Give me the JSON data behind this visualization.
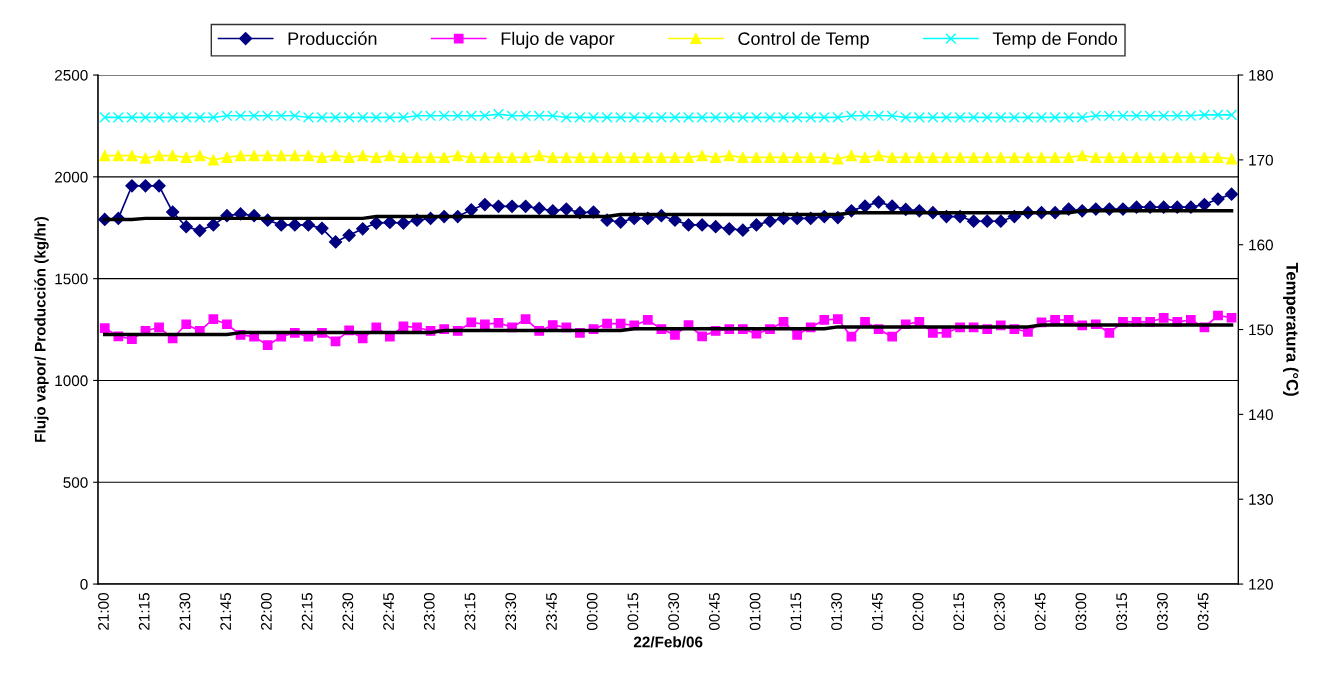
{
  "chart_data": {
    "type": "line",
    "xlabel": "22/Feb/06",
    "ylabel": "Flujo vapor/ Producción (kg/hr)",
    "y2label": "Temperatura (°C)",
    "categories": [
      "21:00",
      null,
      null,
      "21:15",
      null,
      null,
      "21:30",
      null,
      null,
      "21:45",
      null,
      null,
      "22:00",
      null,
      null,
      "22:15",
      null,
      null,
      "22:30",
      null,
      null,
      "22:45",
      null,
      null,
      "23:00",
      null,
      null,
      "23:15",
      null,
      null,
      "23:30",
      null,
      null,
      "23:45",
      null,
      null,
      "00:00",
      null,
      null,
      "00:15",
      null,
      null,
      "00:30",
      null,
      null,
      "00:45",
      null,
      null,
      "01:00",
      null,
      null,
      "01:15",
      null,
      null,
      "01:30",
      null,
      null,
      "01:45",
      null,
      null,
      "02:00",
      null,
      null,
      "02:15",
      null,
      null,
      "02:30",
      null,
      null,
      "02:45",
      null,
      null,
      "03:00",
      null,
      null,
      "03:15",
      null,
      null,
      "03:30",
      null,
      null,
      "03:45",
      null,
      null
    ],
    "ylim": [
      0,
      2500
    ],
    "yticks": [
      0,
      500,
      1000,
      1500,
      2000,
      2500
    ],
    "y2lim": [
      120,
      180
    ],
    "y2ticks": [
      120,
      130,
      140,
      150,
      160,
      170,
      180
    ],
    "grid": "y",
    "legend": "top",
    "line_style": "solid",
    "series": [
      {
        "name": "Producción",
        "color": "#000080",
        "marker": "diamond",
        "values": [
          1791,
          1796,
          1956,
          1956,
          1956,
          1827,
          1755,
          1736,
          1764,
          1809,
          1818,
          1809,
          1787,
          1764,
          1764,
          1764,
          1747,
          1680,
          1713,
          1745,
          1773,
          1776,
          1773,
          1787,
          1796,
          1805,
          1805,
          1838,
          1864,
          1855,
          1855,
          1855,
          1845,
          1833,
          1842,
          1824,
          1827,
          1787,
          1778,
          1796,
          1796,
          1809,
          1787,
          1764,
          1764,
          1755,
          1745,
          1738,
          1764,
          1782,
          1796,
          1796,
          1796,
          1805,
          1800,
          1833,
          1856,
          1876,
          1856,
          1840,
          1833,
          1824,
          1805,
          1805,
          1782,
          1782,
          1782,
          1805,
          1824,
          1824,
          1824,
          1842,
          1833,
          1842,
          1842,
          1842,
          1851,
          1851,
          1851,
          1851,
          1851,
          1864,
          1891,
          1915
        ]
      },
      {
        "name": "Flujo de vapor",
        "color": "#ff00ff",
        "marker": "square",
        "values": [
          1257,
          1217,
          1203,
          1243,
          1261,
          1206,
          1276,
          1243,
          1301,
          1276,
          1224,
          1215,
          1173,
          1215,
          1234,
          1215,
          1234,
          1192,
          1246,
          1206,
          1261,
          1215,
          1266,
          1261,
          1243,
          1252,
          1243,
          1285,
          1276,
          1283,
          1261,
          1301,
          1243,
          1272,
          1261,
          1234,
          1252,
          1279,
          1279,
          1270,
          1297,
          1252,
          1224,
          1272,
          1217,
          1243,
          1252,
          1252,
          1230,
          1252,
          1288,
          1224,
          1261,
          1297,
          1301,
          1215,
          1288,
          1252,
          1215,
          1276,
          1288,
          1234,
          1234,
          1261,
          1261,
          1252,
          1270,
          1252,
          1239,
          1285,
          1297,
          1297,
          1270,
          1276,
          1234,
          1288,
          1288,
          1288,
          1307,
          1288,
          1297,
          1261,
          1319,
          1308
        ]
      },
      {
        "name": "Control de Temp",
        "color": "#ffff00",
        "marker": "triangle",
        "axis": "y2",
        "values": [
          170.5,
          170.5,
          170.5,
          170.2,
          170.5,
          170.5,
          170.3,
          170.5,
          170.0,
          170.3,
          170.5,
          170.5,
          170.5,
          170.5,
          170.5,
          170.5,
          170.3,
          170.5,
          170.3,
          170.5,
          170.3,
          170.5,
          170.3,
          170.3,
          170.3,
          170.3,
          170.5,
          170.3,
          170.3,
          170.3,
          170.3,
          170.3,
          170.5,
          170.3,
          170.3,
          170.3,
          170.3,
          170.3,
          170.3,
          170.3,
          170.3,
          170.3,
          170.3,
          170.3,
          170.5,
          170.3,
          170.5,
          170.3,
          170.3,
          170.3,
          170.3,
          170.3,
          170.3,
          170.3,
          170.1,
          170.5,
          170.3,
          170.5,
          170.3,
          170.3,
          170.3,
          170.3,
          170.3,
          170.3,
          170.3,
          170.3,
          170.3,
          170.3,
          170.3,
          170.3,
          170.3,
          170.3,
          170.5,
          170.3,
          170.3,
          170.3,
          170.3,
          170.3,
          170.3,
          170.3,
          170.3,
          170.3,
          170.3,
          170.1
        ]
      },
      {
        "name": "Temp de Fondo",
        "color": "#00ffff",
        "marker": "cross",
        "axis": "y2",
        "values": [
          175.0,
          175.0,
          175.0,
          175.0,
          175.0,
          175.0,
          175.0,
          175.0,
          175.0,
          175.2,
          175.2,
          175.2,
          175.2,
          175.2,
          175.2,
          175.0,
          175.0,
          175.0,
          175.0,
          175.0,
          175.0,
          175.0,
          175.0,
          175.2,
          175.2,
          175.2,
          175.2,
          175.2,
          175.2,
          175.4,
          175.2,
          175.2,
          175.2,
          175.2,
          175.0,
          175.0,
          175.0,
          175.0,
          175.0,
          175.0,
          175.0,
          175.0,
          175.0,
          175.0,
          175.0,
          175.0,
          175.0,
          175.0,
          175.0,
          175.0,
          175.0,
          175.0,
          175.0,
          175.0,
          175.0,
          175.2,
          175.2,
          175.2,
          175.2,
          175.0,
          175.0,
          175.0,
          175.0,
          175.0,
          175.0,
          175.0,
          175.0,
          175.0,
          175.0,
          175.0,
          175.0,
          175.0,
          175.0,
          175.2,
          175.2,
          175.2,
          175.2,
          175.2,
          175.2,
          175.2,
          175.2,
          175.3,
          175.3,
          175.3
        ]
      },
      {
        "color": "#000000",
        "marker": "none",
        "values": [
          1791,
          1791,
          1791,
          1796,
          1796,
          1796,
          1796,
          1796,
          1796,
          1796,
          1796,
          1796,
          1796,
          1796,
          1796,
          1796,
          1796,
          1796,
          1796,
          1796,
          1805,
          1805,
          1805,
          1805,
          1805,
          1805,
          1805,
          1805,
          1805,
          1805,
          1805,
          1805,
          1805,
          1805,
          1805,
          1805,
          1805,
          1805,
          1815,
          1815,
          1815,
          1815,
          1815,
          1815,
          1815,
          1815,
          1815,
          1815,
          1815,
          1815,
          1815,
          1815,
          1815,
          1815,
          1815,
          1824,
          1824,
          1824,
          1824,
          1824,
          1824,
          1824,
          1824,
          1824,
          1824,
          1824,
          1824,
          1824,
          1824,
          1824,
          1824,
          1824,
          1833,
          1833,
          1833,
          1833,
          1833,
          1833,
          1833,
          1833,
          1833,
          1833,
          1833,
          1833
        ]
      },
      {
        "color": "#000000",
        "marker": "none",
        "values": [
          1226,
          1226,
          1226,
          1226,
          1226,
          1226,
          1226,
          1226,
          1226,
          1226,
          1235,
          1235,
          1235,
          1235,
          1235,
          1235,
          1235,
          1235,
          1235,
          1235,
          1235,
          1235,
          1235,
          1235,
          1235,
          1245,
          1245,
          1245,
          1245,
          1245,
          1245,
          1245,
          1245,
          1245,
          1245,
          1245,
          1245,
          1245,
          1245,
          1254,
          1254,
          1254,
          1254,
          1254,
          1254,
          1254,
          1254,
          1254,
          1254,
          1254,
          1254,
          1254,
          1254,
          1254,
          1263,
          1263,
          1263,
          1263,
          1263,
          1263,
          1263,
          1263,
          1263,
          1263,
          1263,
          1263,
          1263,
          1263,
          1263,
          1272,
          1272,
          1272,
          1272,
          1272,
          1272,
          1272,
          1272,
          1272,
          1272,
          1272,
          1272,
          1272,
          1272,
          1272
        ]
      }
    ]
  }
}
